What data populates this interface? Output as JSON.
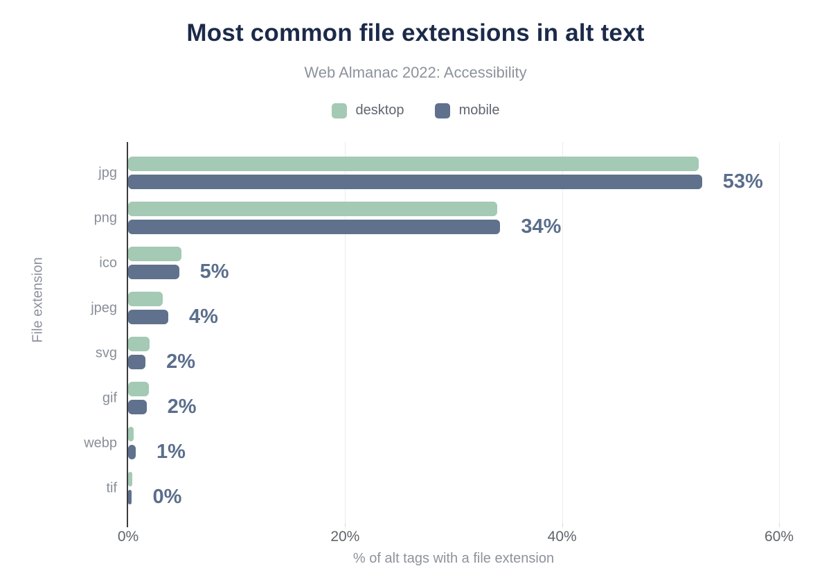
{
  "header": {
    "title": "Most common file extensions in alt text",
    "subtitle": "Web Almanac 2022: Accessibility"
  },
  "legend": {
    "items": [
      {
        "label": "desktop",
        "color": "#a4c9b4"
      },
      {
        "label": "mobile",
        "color": "#5f718c"
      }
    ]
  },
  "chart_data": {
    "type": "bar",
    "orientation": "horizontal",
    "title": "Most common file extensions in alt text",
    "subtitle": "Web Almanac 2022: Accessibility",
    "xlabel": "% of alt tags with a file extension",
    "ylabel": "File extension",
    "xlim": [
      0,
      60
    ],
    "xticks": [
      {
        "value": 0,
        "label": "0%"
      },
      {
        "value": 20,
        "label": "20%"
      },
      {
        "value": 40,
        "label": "40%"
      },
      {
        "value": 60,
        "label": "60%"
      }
    ],
    "gridlines_at": [
      20,
      40,
      60
    ],
    "legend_position": "top",
    "categories": [
      "jpg",
      "png",
      "ico",
      "jpeg",
      "svg",
      "gif",
      "webp",
      "tif"
    ],
    "series": [
      {
        "name": "desktop",
        "color": "#a4c9b4",
        "values": [
          52.6,
          34.0,
          4.9,
          3.2,
          2.0,
          1.9,
          0.5,
          0.4
        ]
      },
      {
        "name": "mobile",
        "color": "#5f718c",
        "values": [
          52.9,
          34.3,
          4.7,
          3.7,
          1.6,
          1.7,
          0.7,
          0.35
        ]
      }
    ],
    "value_labels": [
      "53%",
      "34%",
      "5%",
      "4%",
      "2%",
      "2%",
      "1%",
      "0%"
    ]
  },
  "colors": {
    "title": "#1c2a49",
    "subtitle": "#8d929b",
    "legend_text": "#5f6670",
    "category_label": "#888e98",
    "value_label": "#5a6e8c",
    "tick_label": "#606469",
    "axis_title": "#8d929b",
    "gridline": "#ececee",
    "axis_line": "#3a3b3d",
    "desktop_bar": "#a4c9b4",
    "mobile_bar": "#5f718c"
  }
}
